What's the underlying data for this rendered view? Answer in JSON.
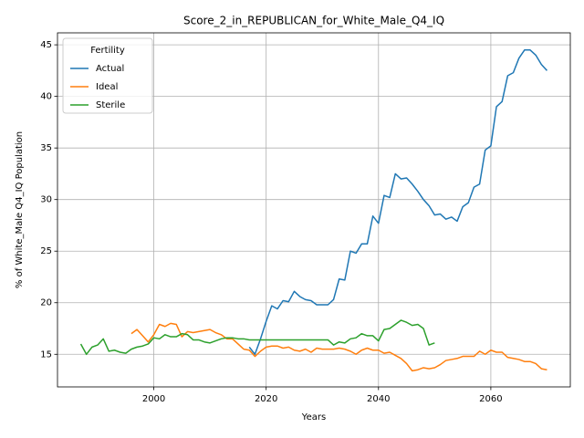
{
  "chart_data": {
    "type": "line",
    "title": "Score_2_in_REPUBLICAN_for_White_Male_Q4_IQ",
    "x_label": "Years",
    "y_label": "% of White_Male Q4_IQ Population",
    "legend_title": "Fertility",
    "legend": "upper left",
    "grid": true,
    "xlim": [
      1982.85,
      2074.15
    ],
    "ylim": [
      11.84,
      46.16
    ],
    "xticks": [
      2000,
      2020,
      2040,
      2060
    ],
    "yticks": [
      15,
      20,
      25,
      30,
      35,
      40,
      45
    ],
    "x": [
      1987,
      1988,
      1989,
      1990,
      1991,
      1992,
      1993,
      1994,
      1995,
      1996,
      1997,
      1998,
      1999,
      2000,
      2001,
      2002,
      2003,
      2004,
      2005,
      2006,
      2007,
      2008,
      2009,
      2010,
      2011,
      2012,
      2013,
      2014,
      2015,
      2016,
      2017,
      2018,
      2019,
      2020,
      2021,
      2022,
      2023,
      2024,
      2025,
      2026,
      2027,
      2028,
      2029,
      2030,
      2031,
      2032,
      2033,
      2034,
      2035,
      2036,
      2037,
      2038,
      2039,
      2040,
      2041,
      2042,
      2043,
      2044,
      2045,
      2046,
      2047,
      2048,
      2049,
      2050,
      2051,
      2052,
      2053,
      2054,
      2055,
      2056,
      2057,
      2058,
      2059,
      2060,
      2061,
      2062,
      2063,
      2064,
      2065,
      2066,
      2067,
      2068,
      2069,
      2070
    ],
    "series": [
      {
        "name": "Actual",
        "color": "#1f77b4",
        "values": [
          null,
          null,
          null,
          null,
          null,
          null,
          null,
          null,
          null,
          null,
          null,
          null,
          null,
          null,
          null,
          null,
          null,
          null,
          null,
          null,
          null,
          null,
          null,
          null,
          null,
          null,
          null,
          null,
          null,
          null,
          15.7,
          15.0,
          16.5,
          18.2,
          19.7,
          19.4,
          20.2,
          20.1,
          21.1,
          20.6,
          20.3,
          20.2,
          19.8,
          19.8,
          19.8,
          20.3,
          22.3,
          22.2,
          25.0,
          24.8,
          25.7,
          25.7,
          28.4,
          27.7,
          30.4,
          30.2,
          32.5,
          32.0,
          32.1,
          31.5,
          30.8,
          30.0,
          29.4,
          28.5,
          28.6,
          28.1,
          28.3,
          27.9,
          29.3,
          29.7,
          31.2,
          31.5,
          34.8,
          35.2,
          39.0,
          39.5,
          42.0,
          42.3,
          43.7,
          44.5,
          44.5,
          44.0,
          43.1,
          42.5
        ]
      },
      {
        "name": "Ideal",
        "color": "#ff7f0e",
        "values": [
          null,
          null,
          null,
          null,
          null,
          null,
          null,
          null,
          null,
          17.0,
          17.4,
          16.8,
          16.2,
          16.9,
          17.9,
          17.7,
          18.0,
          17.9,
          16.7,
          17.2,
          17.1,
          17.2,
          17.3,
          17.4,
          17.1,
          16.9,
          16.5,
          16.5,
          16.0,
          15.5,
          15.4,
          14.8,
          15.3,
          15.7,
          15.8,
          15.8,
          15.6,
          15.7,
          15.4,
          15.3,
          15.5,
          15.2,
          15.6,
          15.5,
          15.5,
          15.5,
          15.6,
          15.5,
          15.3,
          15.0,
          15.4,
          15.6,
          15.4,
          15.4,
          15.1,
          15.2,
          14.9,
          14.6,
          14.1,
          13.4,
          13.5,
          13.7,
          13.6,
          13.7,
          14.0,
          14.4,
          14.5,
          14.6,
          14.8,
          14.8,
          14.8,
          15.3,
          15.0,
          15.4,
          15.2,
          15.2,
          14.7,
          14.6,
          14.5,
          14.3,
          14.3,
          14.1,
          13.6,
          13.5
        ]
      },
      {
        "name": "Sterile",
        "color": "#2ca02c",
        "values": [
          16.0,
          15.0,
          15.7,
          15.9,
          16.5,
          15.3,
          15.4,
          15.2,
          15.1,
          15.5,
          15.7,
          15.8,
          16.0,
          16.6,
          16.5,
          16.9,
          16.7,
          16.7,
          17.0,
          16.9,
          16.4,
          16.4,
          16.2,
          16.1,
          16.3,
          16.5,
          16.6,
          16.6,
          16.5,
          16.5,
          16.4,
          16.4,
          16.4,
          16.4,
          16.4,
          16.4,
          16.4,
          16.4,
          16.4,
          16.4,
          16.4,
          16.4,
          16.4,
          16.4,
          16.4,
          15.9,
          16.2,
          16.1,
          16.5,
          16.6,
          17.0,
          16.8,
          16.8,
          16.3,
          17.4,
          17.5,
          17.9,
          18.3,
          18.1,
          17.8,
          17.9,
          17.5,
          15.9,
          16.1,
          null,
          null,
          null,
          null,
          null,
          null,
          null,
          null,
          null,
          null,
          null,
          null,
          null,
          null,
          null,
          null,
          null,
          null,
          null,
          null
        ]
      }
    ]
  }
}
